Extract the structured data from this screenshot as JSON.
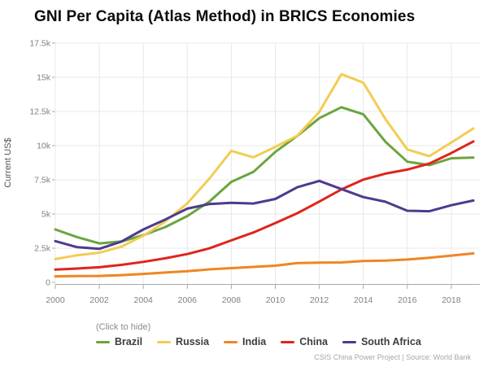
{
  "title": "GNI Per Capita (Atlas Method) in BRICS Economies",
  "footer": "CSIS China Power Project | Source: World Bank",
  "chart_data": {
    "type": "line",
    "title": "GNI Per Capita (Atlas Method) in BRICS Economies",
    "xlabel": "",
    "ylabel": "Current US$",
    "ylim": [
      0,
      17500
    ],
    "grid": true,
    "legend_position": "bottom",
    "legend_note": "(Click to hide)",
    "x": [
      2000,
      2001,
      2002,
      2003,
      2004,
      2005,
      2006,
      2007,
      2008,
      2009,
      2010,
      2011,
      2012,
      2013,
      2014,
      2015,
      2016,
      2017,
      2018,
      2019
    ],
    "x_tick_labels": [
      "2000",
      "2002",
      "2004",
      "2006",
      "2008",
      "2010",
      "2012",
      "2014",
      "2016",
      "2018"
    ],
    "y_ticks": [
      {
        "value": 0,
        "label": "0"
      },
      {
        "value": 2500,
        "label": "2.5k"
      },
      {
        "value": 5000,
        "label": "5k"
      },
      {
        "value": 7500,
        "label": "7.5k"
      },
      {
        "value": 10000,
        "label": "10k"
      },
      {
        "value": 12500,
        "label": "12.5k"
      },
      {
        "value": 15000,
        "label": "15k"
      },
      {
        "value": 17500,
        "label": "17.5k"
      }
    ],
    "series": [
      {
        "name": "Brazil",
        "color": "#6ba53f",
        "values": [
          3870,
          3310,
          2850,
          2990,
          3450,
          4050,
          4850,
          5910,
          7350,
          8080,
          9540,
          10720,
          12010,
          12810,
          12300,
          10290,
          8830,
          8580,
          9080,
          9130
        ]
      },
      {
        "name": "Russia",
        "color": "#f2cd51",
        "values": [
          1710,
          1980,
          2170,
          2610,
          3410,
          4460,
          5780,
          7590,
          9620,
          9150,
          9910,
          10730,
          12470,
          15230,
          14610,
          11950,
          9720,
          9230,
          10230,
          11260
        ]
      },
      {
        "name": "India",
        "color": "#ee8623",
        "values": [
          440,
          460,
          470,
          530,
          620,
          720,
          820,
          950,
          1040,
          1130,
          1220,
          1410,
          1440,
          1460,
          1560,
          1590,
          1670,
          1800,
          1960,
          2120
        ]
      },
      {
        "name": "China",
        "color": "#e0241c",
        "values": [
          940,
          1010,
          1110,
          1280,
          1500,
          1760,
          2070,
          2490,
          3070,
          3650,
          4340,
          5060,
          5910,
          6800,
          7520,
          7950,
          8250,
          8690,
          9460,
          10310
        ]
      },
      {
        "name": "South Africa",
        "color": "#4d3b8e",
        "values": [
          3020,
          2570,
          2450,
          2980,
          3870,
          4600,
          5390,
          5730,
          5820,
          5770,
          6100,
          6960,
          7420,
          6830,
          6240,
          5900,
          5240,
          5200,
          5640,
          5990
        ]
      }
    ],
    "grid_color": "#e8e8e8",
    "axis_color": "#aaaaaa",
    "tick_label_color": "#808080"
  }
}
